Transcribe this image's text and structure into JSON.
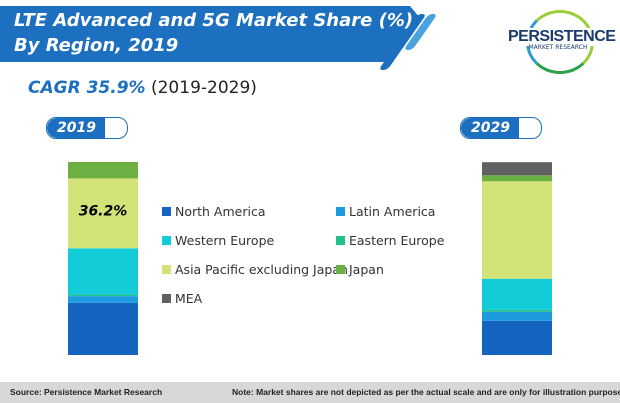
{
  "title_line1": "LTE Advanced and 5G Market Share (%)",
  "title_line2": "By Region, 2019",
  "logo": {
    "name": "PERSISTENCE",
    "sub": "MARKET RESEARCH"
  },
  "cagr": {
    "label": "CAGR 35.9%",
    "period": "(2019-2029)"
  },
  "footer": {
    "source": "Source: Persistence Market Research",
    "note": "Note: Market shares are not depicted as per the actual scale and are only for illustration purposes"
  },
  "chart_data": {
    "type": "bar",
    "stacked": true,
    "categories": [
      "2019",
      "2029"
    ],
    "series": [
      {
        "name": "North America",
        "color": "#1565c0",
        "values": [
          27,
          17.7
        ]
      },
      {
        "name": "Latin America",
        "color": "#1e9be0",
        "values": [
          3.5,
          4.7
        ]
      },
      {
        "name": "Eastern Europe",
        "color": "#22c08a",
        "values": [
          0.8,
          1
        ]
      },
      {
        "name": "Western Europe",
        "color": "#12ccd8",
        "values": [
          24,
          16.1
        ]
      },
      {
        "name": "Asia Pacific excluding Japan",
        "color": "#d4e377",
        "values": [
          36.2,
          50.5
        ]
      },
      {
        "name": "Japan",
        "color": "#6cb043",
        "values": [
          8.5,
          3.1
        ]
      },
      {
        "name": "MEA",
        "color": "#606060",
        "values": [
          0,
          6.8
        ]
      }
    ],
    "data_labels": [
      {
        "category": "2019",
        "series": "Asia Pacific excluding Japan",
        "text": "36.2%"
      }
    ],
    "legend_order": [
      "North America",
      "Latin America",
      "Western Europe",
      "Eastern Europe",
      "Asia Pacific excluding Japan",
      "Japan",
      "MEA"
    ],
    "ylim": [
      0,
      100
    ],
    "grid": false,
    "legend_placement": "center"
  }
}
